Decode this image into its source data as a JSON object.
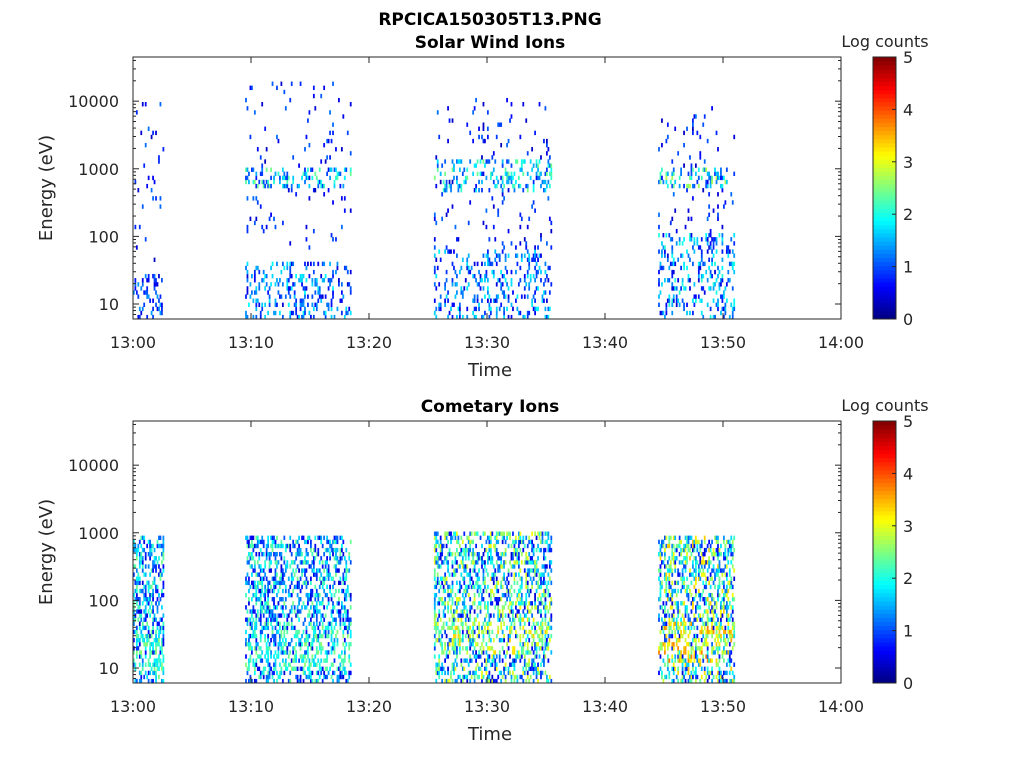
{
  "figure": {
    "filename_title": "RPCICA150305T13.PNG"
  },
  "colormap": {
    "name": "jet",
    "stops": [
      "#00007f",
      "#0000ff",
      "#007fff",
      "#00ffff",
      "#7fff7f",
      "#ffff00",
      "#ff7f00",
      "#ff0000",
      "#7f0000"
    ]
  },
  "chart_data": [
    {
      "type": "heatmap",
      "title": "Solar Wind Ions",
      "xlabel": "Time",
      "ylabel": "Energy (eV)",
      "x_ticks": [
        "13:00",
        "13:10",
        "13:20",
        "13:30",
        "13:40",
        "13:50",
        "14:00"
      ],
      "x_range_minutes": [
        0,
        60
      ],
      "y_scale": "log",
      "y_ticks": [
        "10",
        "100",
        "1000",
        "10000"
      ],
      "y_range": [
        6,
        45000
      ],
      "colorbar": {
        "label": "Log counts",
        "range": [
          0,
          5
        ],
        "ticks": [
          "0",
          "1",
          "2",
          "3",
          "4",
          "5"
        ]
      },
      "bursts": [
        {
          "t": [
            0.0,
            2.6
          ],
          "e_low": [
            6,
            25
          ],
          "peak_log_counts": 1.8,
          "sparse_e": [
            40,
            10000
          ]
        },
        {
          "t": [
            9.5,
            18.5
          ],
          "e_low": [
            6,
            40
          ],
          "peak_log_counts": 2.5,
          "sparse_e": [
            60,
            20000
          ],
          "band_e": [
            500,
            1000
          ]
        },
        {
          "t": [
            25.5,
            35.5
          ],
          "e_low": [
            6,
            60
          ],
          "peak_log_counts": 2.5,
          "sparse_e": [
            60,
            10000
          ],
          "band_e": [
            400,
            1200
          ]
        },
        {
          "t": [
            44.5,
            51.0
          ],
          "e_low": [
            6,
            100
          ],
          "peak_log_counts": 2.8,
          "sparse_e": [
            80,
            8000
          ],
          "band_e": [
            500,
            1000
          ]
        }
      ]
    },
    {
      "type": "heatmap",
      "title": "Cometary Ions",
      "xlabel": "Time",
      "ylabel": "Energy (eV)",
      "x_ticks": [
        "13:00",
        "13:10",
        "13:20",
        "13:30",
        "13:40",
        "13:50",
        "14:00"
      ],
      "x_range_minutes": [
        0,
        60
      ],
      "y_scale": "log",
      "y_ticks": [
        "10",
        "100",
        "1000",
        "10000"
      ],
      "y_range": [
        6,
        45000
      ],
      "colorbar": {
        "label": "Log counts",
        "range": [
          0,
          5
        ],
        "ticks": [
          "0",
          "1",
          "2",
          "3",
          "4",
          "5"
        ]
      },
      "bursts": [
        {
          "t": [
            0.0,
            2.6
          ],
          "e_low": [
            6,
            900
          ],
          "peak_log_counts": 2.6,
          "hot_e": [
            8,
            30
          ]
        },
        {
          "t": [
            9.5,
            18.5
          ],
          "e_low": [
            6,
            900
          ],
          "peak_log_counts": 2.6,
          "hot_e": [
            8,
            40
          ]
        },
        {
          "t": [
            25.5,
            35.5
          ],
          "e_low": [
            6,
            1000
          ],
          "peak_log_counts": 3.4,
          "hot_e": [
            15,
            50
          ]
        },
        {
          "t": [
            44.5,
            51.0
          ],
          "e_low": [
            6,
            900
          ],
          "peak_log_counts": 3.8,
          "hot_e": [
            12,
            45
          ]
        }
      ]
    }
  ]
}
